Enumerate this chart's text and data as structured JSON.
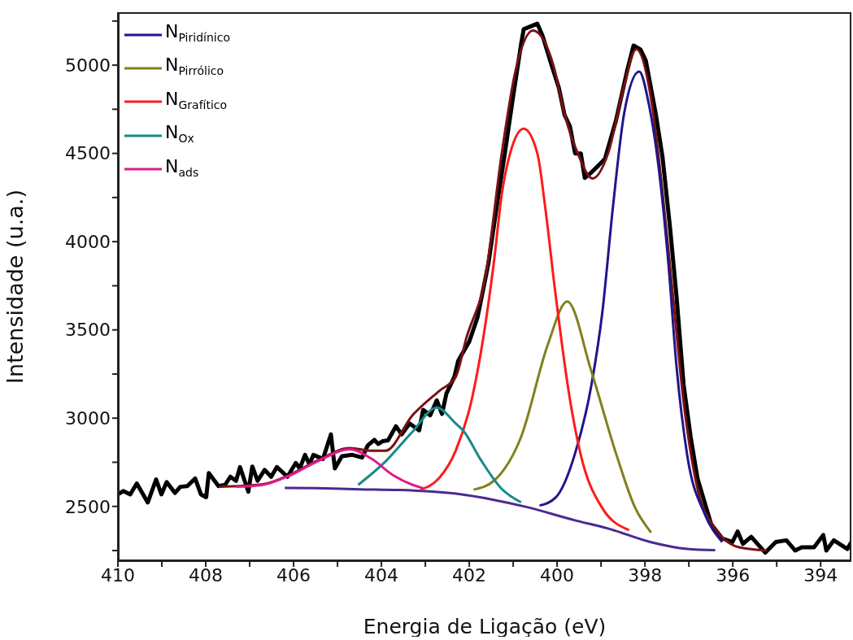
{
  "chart_data": {
    "type": "line",
    "xlabel": "Energia de Ligação (eV)",
    "ylabel": "Intensidade (u.a.)",
    "xlim": [
      410,
      393.3
    ],
    "xticks": [
      410,
      {
        "value": 409,
        "label": null
      },
      408,
      {
        "value": 407,
        "label": null
      },
      406,
      {
        "value": 405,
        "label": null
      },
      404,
      {
        "value": 403,
        "label": null
      },
      402,
      {
        "value": 401,
        "label": null
      },
      400,
      {
        "value": 399,
        "label": null
      },
      398,
      {
        "value": 397,
        "label": null
      },
      396,
      {
        "value": 395,
        "label": null
      },
      394
    ],
    "ylim": [
      2190,
      5300
    ],
    "yticks": [
      {
        "value": 2250,
        "label": null
      },
      2500,
      {
        "value": 2750,
        "label": null
      },
      3000,
      {
        "value": 3250,
        "label": null
      },
      3500,
      {
        "value": 3750,
        "label": null
      },
      4000,
      {
        "value": 4250,
        "label": null
      },
      4500,
      {
        "value": 4750,
        "label": null
      },
      5000,
      {
        "value": 5250,
        "label": null
      }
    ],
    "grid": false,
    "legend": "top left",
    "series": [
      {
        "color": "#000000",
        "x": [
          410.0,
          409.88,
          409.72,
          409.57,
          409.32,
          409.13,
          409.01,
          408.89,
          408.7,
          408.58,
          408.42,
          408.24,
          408.11,
          407.99,
          407.93,
          407.71,
          407.56,
          407.44,
          407.31,
          407.22,
          407.03,
          406.94,
          406.82,
          406.66,
          406.51,
          406.38,
          406.14,
          405.95,
          405.86,
          405.74,
          405.64,
          405.55,
          405.33,
          405.15,
          405.06,
          404.9,
          404.66,
          404.44,
          404.31,
          404.16,
          404.07,
          403.97,
          403.85,
          403.67,
          403.54,
          403.36,
          403.14,
          403.05,
          402.89,
          402.74,
          402.62,
          402.52,
          402.34,
          402.25,
          402.0,
          401.81,
          401.66,
          401.56,
          401.38,
          401.19,
          401.01,
          400.82,
          400.76,
          400.45,
          400.33,
          400.14,
          399.96,
          399.83,
          399.71,
          399.59,
          399.46,
          399.37,
          399.22,
          399.06,
          398.91,
          398.66,
          398.41,
          398.26,
          398.1,
          397.98,
          397.75,
          397.6,
          397.43,
          397.28,
          397.12,
          396.96,
          396.8,
          396.49,
          396.24,
          396.01,
          395.89,
          395.77,
          395.58,
          395.26,
          395.02,
          394.78,
          394.58,
          394.43,
          394.15,
          393.94,
          393.87,
          393.7,
          393.39,
          393.3
        ],
        "values": [
          2568,
          2587,
          2568,
          2630,
          2522,
          2653,
          2568,
          2638,
          2576,
          2611,
          2615,
          2658,
          2568,
          2552,
          2689,
          2615,
          2622,
          2668,
          2645,
          2723,
          2583,
          2726,
          2645,
          2707,
          2668,
          2723,
          2668,
          2746,
          2715,
          2792,
          2738,
          2792,
          2769,
          2908,
          2715,
          2784,
          2792,
          2777,
          2846,
          2877,
          2854,
          2870,
          2874,
          2954,
          2908,
          2970,
          2931,
          3047,
          3016,
          3101,
          3024,
          3140,
          3233,
          3326,
          3434,
          3573,
          3758,
          3882,
          4191,
          4500,
          4809,
          5119,
          5204,
          5235,
          5165,
          5011,
          4871,
          4717,
          4655,
          4500,
          4500,
          4361,
          4392,
          4431,
          4470,
          4686,
          4964,
          5111,
          5088,
          5026,
          4718,
          4480,
          4083,
          3687,
          3191,
          2894,
          2655,
          2398,
          2319,
          2298,
          2358,
          2288,
          2328,
          2238,
          2298,
          2308,
          2250,
          2268,
          2268,
          2338,
          2250,
          2308,
          2259,
          2298
        ]
      },
      {
        "color": "#7b1113",
        "x": [
          407.7,
          406.7,
          406.08,
          405.46,
          404.72,
          404.2,
          403.91,
          403.29,
          402.68,
          402.31,
          402.07,
          401.63,
          401.26,
          400.95,
          400.55,
          400.08,
          399.84,
          399.53,
          399.19,
          398.84,
          398.47,
          398.2,
          397.84,
          397.6,
          397.36,
          397.12,
          396.8,
          396.41,
          395.85,
          395.22
        ],
        "values": [
          2611,
          2625,
          2680,
          2760,
          2830,
          2815,
          2815,
          3017,
          3155,
          3233,
          3451,
          3805,
          4500,
          4964,
          5196,
          4995,
          4732,
          4500,
          4358,
          4500,
          4887,
          5090,
          4777,
          4281,
          3687,
          3094,
          2597,
          2379,
          2268,
          2250
        ]
      },
      {
        "color": "#4b2a90",
        "x": [
          406.2,
          405.5,
          404.5,
          403.6,
          402.3,
          401.44,
          400.7,
          399.59,
          398.84,
          397.86,
          397.04,
          396.4
        ],
        "values": [
          2605,
          2603,
          2597,
          2593,
          2572,
          2537,
          2497,
          2421,
          2375,
          2297,
          2259,
          2252
        ]
      },
      {
        "name": "N$_{Piridínico}$",
        "color": "#1f168c",
        "x": [
          400.4,
          400.03,
          399.59,
          399.22,
          398.97,
          398.73,
          398.47,
          398.13,
          397.91,
          397.67,
          397.47,
          397.28,
          397.04,
          396.64,
          396.24
        ],
        "values": [
          2505,
          2551,
          2801,
          3186,
          3600,
          4193,
          4732,
          4964,
          4777,
          4383,
          3887,
          3290,
          2794,
          2458,
          2298
        ]
      },
      {
        "name": "N$_{Pirrólico}$",
        "color": "#808020",
        "x": [
          401.9,
          401.44,
          400.82,
          400.21,
          399.77,
          399.22,
          398.66,
          398.23,
          397.86
        ],
        "values": [
          2595,
          2645,
          2894,
          3418,
          3661,
          3265,
          2801,
          2496,
          2352
        ]
      },
      {
        "name": "N$_{Grafítico}$",
        "color": "#ff1a1a",
        "x": [
          403.11,
          402.68,
          402.31,
          401.94,
          401.44,
          401.26,
          401.07,
          400.76,
          400.45,
          400.27,
          400.05,
          399.71,
          399.47,
          398.97,
          398.36
        ],
        "values": [
          2595,
          2662,
          2815,
          3109,
          3882,
          4268,
          4500,
          4640,
          4500,
          4193,
          3730,
          3109,
          2801,
          2490,
          2366
        ]
      },
      {
        "name": "N$_{Ox}$",
        "color": "#168a8a",
        "x": [
          404.53,
          403.91,
          403.29,
          402.74,
          402.31,
          402.12,
          401.75,
          401.26,
          400.82
        ],
        "values": [
          2622,
          2754,
          2924,
          3060,
          2970,
          2924,
          2769,
          2599,
          2523
        ]
      },
      {
        "name": "N$_{ads}$",
        "color": "#e0188e",
        "x": [
          407.31,
          406.7,
          406.08,
          405.46,
          404.72,
          404.22,
          403.73,
          403.29,
          403.05
        ],
        "values": [
          2611,
          2622,
          2676,
          2755,
          2823,
          2769,
          2676,
          2622,
          2603
        ]
      }
    ]
  }
}
